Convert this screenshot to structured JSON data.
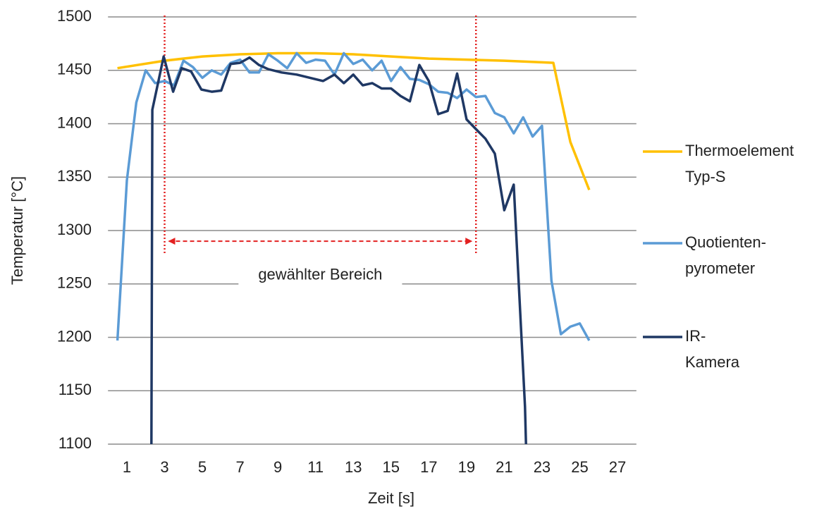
{
  "chart_data": {
    "type": "line",
    "x_label": "Zeit [s]",
    "y_label": "Temperatur [°C]",
    "xlim": [
      0,
      28
    ],
    "xticks": [
      1,
      3,
      5,
      7,
      9,
      11,
      13,
      15,
      17,
      19,
      21,
      23,
      25,
      27
    ],
    "ylim": [
      1100,
      1500
    ],
    "yticks": [
      1100,
      1150,
      1200,
      1250,
      1300,
      1350,
      1400,
      1450,
      1500
    ],
    "grid": true,
    "legend": "right",
    "series": [
      {
        "name": "Thermoelement Typ-S",
        "color": "#FFC000",
        "x": [
          0.5,
          3,
          5,
          7,
          9,
          11,
          13,
          15,
          17,
          19,
          21,
          23,
          23.6,
          24.5,
          25.5
        ],
        "values": [
          1452,
          1459,
          1463,
          1465,
          1466,
          1466,
          1465,
          1463,
          1461,
          1460,
          1459,
          1457.5,
          1457,
          1383,
          1338
        ]
      },
      {
        "name": "Quotienten-pyrometer",
        "color": "#5B9BD5",
        "x": [
          0.5,
          1,
          1.5,
          2,
          2.5,
          3,
          3.5,
          4,
          4.5,
          5,
          5.5,
          6,
          6.5,
          7,
          7.5,
          8,
          8.5,
          9,
          9.5,
          10,
          10.5,
          11,
          11.5,
          12,
          12.5,
          13,
          13.5,
          14,
          14.5,
          15,
          15.5,
          16,
          16.5,
          17,
          17.5,
          18,
          18.5,
          19,
          19.5,
          20,
          20.5,
          21,
          21.5,
          22,
          22.5,
          23,
          23.5,
          24,
          24.5,
          25,
          25.5
        ],
        "values": [
          1197,
          1347,
          1420,
          1450,
          1438,
          1440,
          1436,
          1459,
          1453,
          1443,
          1450,
          1446,
          1457,
          1460,
          1448,
          1448,
          1465,
          1459,
          1452,
          1466,
          1457,
          1460,
          1459,
          1446,
          1466,
          1456,
          1460,
          1450,
          1459,
          1440,
          1453,
          1442,
          1441,
          1437,
          1430,
          1429,
          1424,
          1432,
          1425,
          1426,
          1410,
          1406,
          1391,
          1406,
          1388,
          1398,
          1253,
          1203,
          1210,
          1213,
          1197
        ]
      },
      {
        "name": "IR-Kamera",
        "color": "#1F3864",
        "x": [
          2.3,
          2.35,
          2.95,
          3.45,
          3.9,
          4.4,
          4.95,
          5.5,
          6,
          6.5,
          7,
          7.5,
          8,
          8.5,
          9.2,
          10,
          11.4,
          12,
          12.5,
          13,
          13.5,
          14,
          14.5,
          15,
          15.5,
          16,
          16.5,
          17,
          17.5,
          18,
          18.5,
          19,
          19.5,
          20,
          20.5,
          21,
          21.5,
          22.1,
          22.15
        ],
        "values": [
          1100,
          1413,
          1463,
          1430,
          1452,
          1449,
          1432,
          1430,
          1431,
          1456,
          1457,
          1462,
          1455,
          1451,
          1448,
          1446,
          1440,
          1446,
          1438,
          1446,
          1436,
          1438,
          1433,
          1433,
          1426,
          1421,
          1455,
          1440,
          1409,
          1412,
          1447,
          1404,
          1395,
          1386,
          1372,
          1319,
          1343,
          1135,
          1100
        ]
      }
    ],
    "annotation": {
      "text": "gewählter Bereich",
      "range": [
        3,
        19.5
      ],
      "arrow_y": 1290,
      "line_bottom": 1277,
      "text_y": 1250,
      "color": "#E32020"
    }
  }
}
